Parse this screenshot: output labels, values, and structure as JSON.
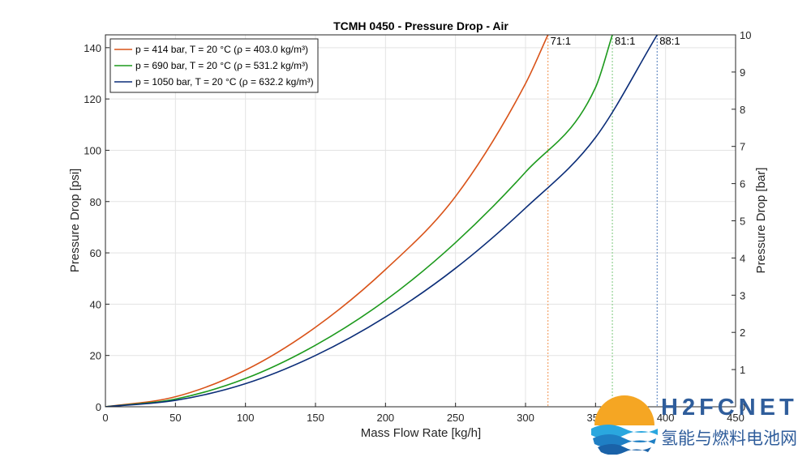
{
  "chart_data": {
    "type": "line",
    "title": "TCMH 0450 - Pressure Drop - Air",
    "xlabel": "Mass Flow Rate [kg/h]",
    "ylabel": "Pressure Drop [psi]",
    "y2label": "Pressure Drop [bar]",
    "xlim": [
      0,
      450
    ],
    "ylim": [
      0,
      145
    ],
    "y2lim": [
      0,
      10
    ],
    "xticks": [
      0,
      50,
      100,
      150,
      200,
      250,
      300,
      350,
      400,
      450
    ],
    "yticks": [
      0,
      20,
      40,
      60,
      80,
      100,
      120,
      140
    ],
    "y2ticks": [
      0,
      1,
      2,
      3,
      4,
      5,
      6,
      7,
      8,
      9,
      10
    ],
    "grid": true,
    "legend_position": "top-left",
    "series": [
      {
        "name": "p = 414 bar, T = 20 °C (ρ = 403.0 kg/m³)",
        "color": "#d95319",
        "x": [
          0,
          50,
          100,
          150,
          200,
          250,
          300,
          316
        ],
        "y": [
          0,
          3.9,
          14.3,
          31.0,
          53.5,
          82.0,
          126.0,
          145.0
        ]
      },
      {
        "name": "p = 690 bar, T = 20 °C (ρ = 531.2 kg/m³)",
        "color": "#1d9a1d",
        "x": [
          0,
          50,
          100,
          150,
          200,
          250,
          300,
          350,
          362
        ],
        "y": [
          0,
          3.0,
          11.0,
          24.0,
          41.5,
          64.0,
          91.5,
          124.5,
          145.0
        ]
      },
      {
        "name": "p = 1050 bar, T = 20 °C (ρ = 632.2 kg/m³)",
        "color": "#0b2d78",
        "x": [
          0,
          50,
          100,
          150,
          200,
          250,
          300,
          350,
          394
        ],
        "y": [
          0,
          2.5,
          9.0,
          20.0,
          35.0,
          54.0,
          77.5,
          105.0,
          145.0
        ]
      }
    ],
    "vlines": [
      {
        "x": 316,
        "label": "71:1",
        "color": "#f4a46a"
      },
      {
        "x": 362,
        "label": "81:1",
        "color": "#8fd08f"
      },
      {
        "x": 394,
        "label": "88:1",
        "color": "#6a8fc4"
      }
    ]
  },
  "watermark": {
    "brand": "H2FCNET",
    "subtitle": "氢能与燃料电池网"
  }
}
